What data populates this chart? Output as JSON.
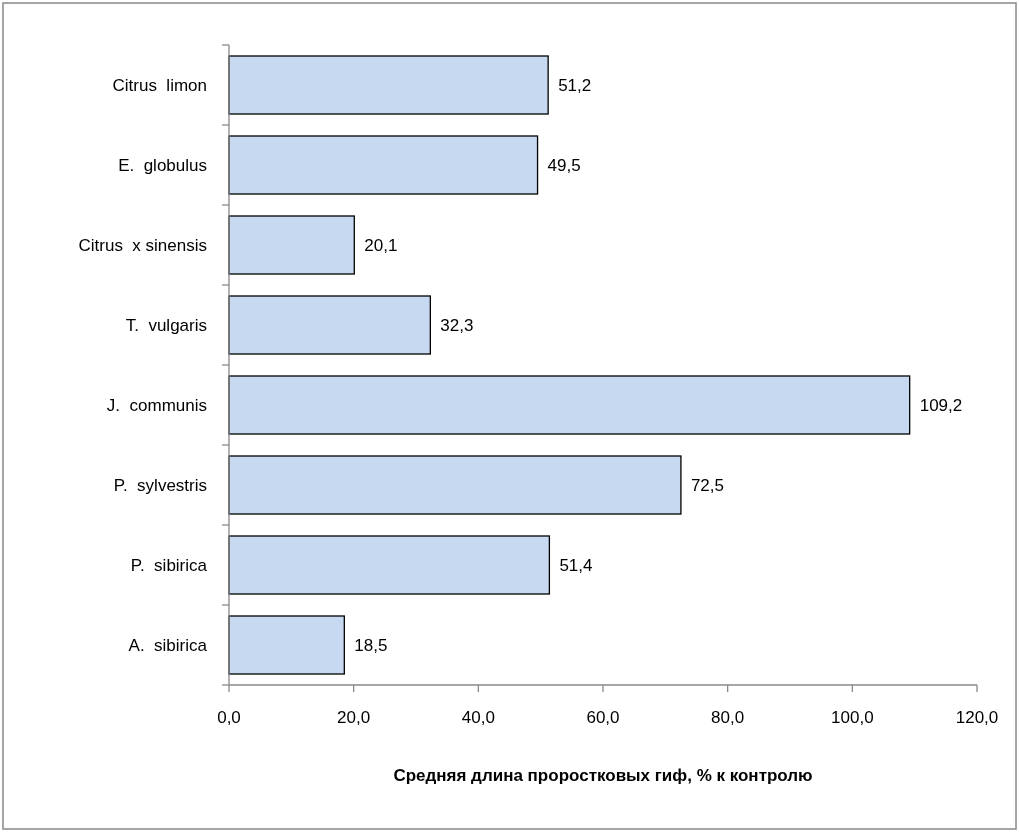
{
  "chart_data": {
    "type": "bar",
    "orientation": "horizontal",
    "xlabel": "Средняя длина проростковых гиф, % к контролю",
    "categories": [
      "Citrus  limon",
      "E.  globulus",
      "Citrus  x sinensis",
      "T.  vulgaris",
      "J.  communis",
      "P.  sylvestris",
      "P.  sibirica",
      "A.  sibirica"
    ],
    "values": [
      51.2,
      49.5,
      20.1,
      32.3,
      109.2,
      72.5,
      51.4,
      18.5
    ],
    "value_labels": [
      "51,2",
      "49,5",
      "20,1",
      "32,3",
      "109,2",
      "72,5",
      "51,4",
      "18,5"
    ],
    "color": "#c6d9f0",
    "xlim": [
      0,
      120
    ],
    "xticks": [
      {
        "value": 0,
        "label": "0,0"
      },
      {
        "value": 20,
        "label": "20,0"
      },
      {
        "value": 40,
        "label": "40,0"
      },
      {
        "value": 60,
        "label": "60,0"
      },
      {
        "value": 80,
        "label": "80,0"
      },
      {
        "value": 100,
        "label": "100,0"
      },
      {
        "value": 120,
        "label": "120,0"
      }
    ],
    "grid": false
  }
}
